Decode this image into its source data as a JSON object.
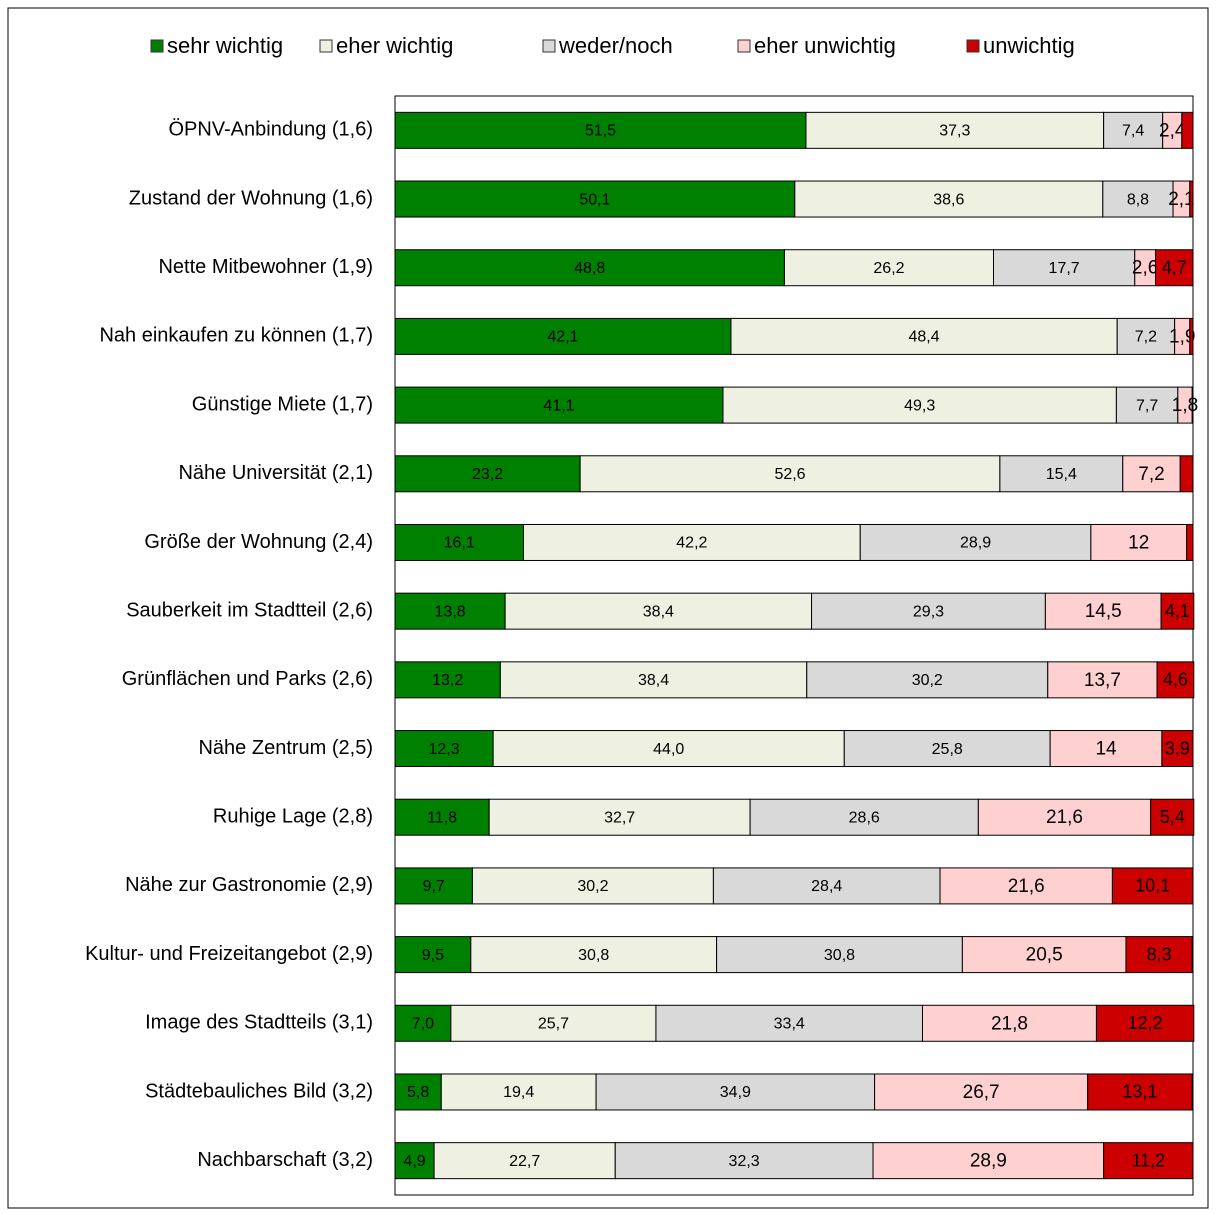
{
  "chart_data": {
    "type": "stacked_barh",
    "categories": [
      "ÖPNV-Anbindung (1,6)",
      "Zustand der Wohnung (1,6)",
      "Nette Mitbewohner (1,9)",
      "Nah einkaufen zu können  (1,7)",
      "Günstige Miete (1,7)",
      "Nähe Universität (2,1)",
      "Größe der Wohnung (2,4)",
      "Sauberkeit im Stadtteil (2,6)",
      "Grünflächen und Parks (2,6)",
      "Nähe Zentrum (2,5)",
      "Ruhige Lage (2,8)",
      "Nähe zur Gastronomie (2,9)",
      "Kultur- und Freizeitangebot (2,9)",
      "Image des Stadtteils (3,1)",
      "Städtebauliches Bild (3,2)",
      "Nachbarschaft (3,2)"
    ],
    "series": [
      {
        "name": "sehr wichtig",
        "color": "#008000",
        "values": [
          51.5,
          50.1,
          48.8,
          42.1,
          41.1,
          23.2,
          16.1,
          13.8,
          13.2,
          12.3,
          11.8,
          9.7,
          9.5,
          7.0,
          5.8,
          4.9
        ],
        "value_labels": [
          "51,5",
          "50,1",
          "48,8",
          "42,1",
          "41,1",
          "23,2",
          "16,1",
          "13,8",
          "13,2",
          "12,3",
          "11,8",
          "9,7",
          "9,5",
          "7,0",
          "5,8",
          "4,9"
        ]
      },
      {
        "name": "eher wichtig",
        "color": "#eef0e2",
        "values": [
          37.3,
          38.6,
          26.2,
          48.4,
          49.3,
          52.6,
          42.2,
          38.4,
          38.4,
          44.0,
          32.7,
          30.2,
          30.8,
          25.7,
          19.4,
          22.7
        ],
        "value_labels": [
          "37,3",
          "38,6",
          "26,2",
          "48,4",
          "49,3",
          "52,6",
          "42,2",
          "38,4",
          "38,4",
          "44,0",
          "32,7",
          "30,2",
          "30,8",
          "25,7",
          "19,4",
          "22,7"
        ]
      },
      {
        "name": "weder/noch",
        "color": "#d9d9d9",
        "values": [
          7.4,
          8.8,
          17.7,
          7.2,
          7.7,
          15.4,
          28.9,
          29.3,
          30.2,
          25.8,
          28.6,
          28.4,
          30.8,
          33.4,
          34.9,
          32.3
        ],
        "value_labels": [
          "7,4",
          "8,8",
          "17,7",
          "7,2",
          "7,7",
          "15,4",
          "28,9",
          "29,3",
          "30,2",
          "25,8",
          "28,6",
          "28,4",
          "30,8",
          "33,4",
          "34,9",
          "32,3"
        ]
      },
      {
        "name": "eher unwichtig",
        "color": "#ffd0d0",
        "values": [
          2.4,
          2.1,
          2.6,
          1.9,
          1.8,
          7.2,
          12,
          14.5,
          13.7,
          14,
          21.6,
          21.6,
          20.5,
          21.8,
          26.7,
          28.9
        ],
        "value_labels": [
          "2,4",
          "2,1",
          "2,6",
          "1,9",
          "1,8",
          "7,2",
          "12",
          "14,5",
          "13,7",
          "14",
          "21,6",
          "21,6",
          "20,5",
          "21,8",
          "26,7",
          "28,9"
        ]
      },
      {
        "name": "unwichtig",
        "color": "#cc0000",
        "values": [
          1.4,
          0.4,
          4.7,
          0.4,
          0.1,
          1.6,
          0.8,
          4.1,
          4.6,
          3.9,
          5.4,
          10.1,
          8.3,
          12.2,
          13.1,
          11.2
        ],
        "value_labels": [
          null,
          null,
          "4,7",
          null,
          null,
          null,
          null,
          "4,1",
          "4,6",
          "3,9",
          "5,4",
          "10,1",
          "8,3",
          "12,2",
          "13,1",
          "11,2"
        ]
      }
    ],
    "xlim": [
      0,
      100
    ]
  }
}
